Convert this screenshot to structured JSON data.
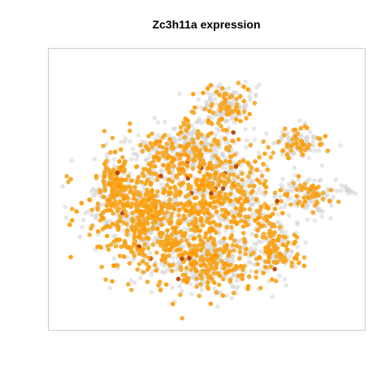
{
  "chart_data": {
    "type": "scatter",
    "title": "Zc3h11a expression",
    "xlabel": "",
    "ylabel": "",
    "xlim": [
      0,
      1
    ],
    "ylim": [
      0,
      1
    ],
    "grid": false,
    "legend": "none",
    "colors": {
      "background_points": "#d4d4d4",
      "low": "#f5a623",
      "mid": "#ff9a00",
      "high": "#b33a00",
      "panel_border": "#cccccc"
    },
    "clusters": [
      {
        "cx": 0.3,
        "cy": 0.6,
        "rx": 0.22,
        "ry": 0.2,
        "n": 900,
        "expressed": 0.55
      },
      {
        "cx": 0.5,
        "cy": 0.78,
        "rx": 0.18,
        "ry": 0.13,
        "n": 420,
        "expressed": 0.45
      },
      {
        "cx": 0.56,
        "cy": 0.52,
        "rx": 0.16,
        "ry": 0.18,
        "n": 520,
        "expressed": 0.42
      },
      {
        "cx": 0.42,
        "cy": 0.35,
        "rx": 0.16,
        "ry": 0.1,
        "n": 380,
        "expressed": 0.4
      },
      {
        "cx": 0.55,
        "cy": 0.18,
        "rx": 0.1,
        "ry": 0.08,
        "n": 180,
        "expressed": 0.35
      },
      {
        "cx": 0.72,
        "cy": 0.72,
        "rx": 0.08,
        "ry": 0.1,
        "n": 180,
        "expressed": 0.45
      },
      {
        "cx": 0.84,
        "cy": 0.52,
        "rx": 0.1,
        "ry": 0.07,
        "n": 150,
        "expressed": 0.3
      },
      {
        "cx": 0.8,
        "cy": 0.32,
        "rx": 0.08,
        "ry": 0.06,
        "n": 120,
        "expressed": 0.25
      },
      {
        "cx": 0.18,
        "cy": 0.48,
        "rx": 0.06,
        "ry": 0.12,
        "n": 160,
        "expressed": 0.55
      },
      {
        "cx": 0.97,
        "cy": 0.5,
        "rx": 0.02,
        "ry": 0.02,
        "n": 10,
        "expressed": 0.2
      }
    ]
  }
}
